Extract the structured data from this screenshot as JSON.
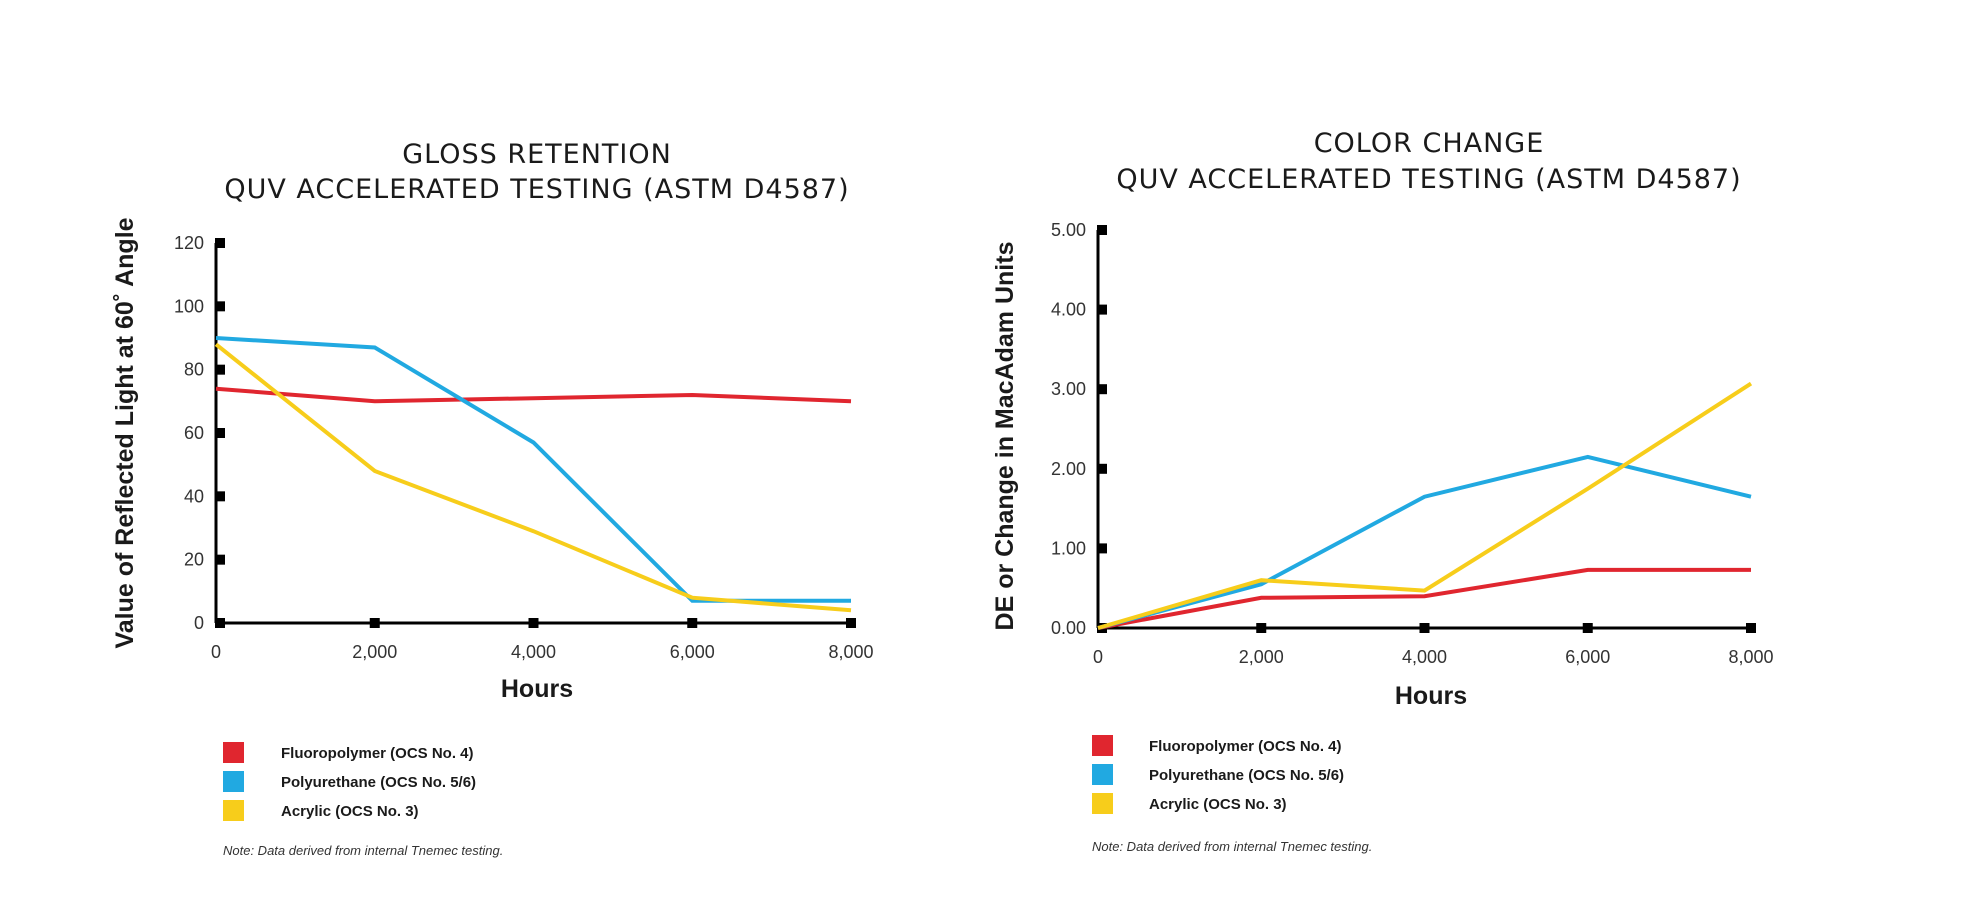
{
  "colors": {
    "fluoropolymer": "#e0262f",
    "polyurethane": "#21a9e1",
    "acrylic": "#f7cd1b",
    "axis": "#000000"
  },
  "legend": [
    {
      "label": "Fluoropolymer (OCS No. 4)",
      "color": "#e0262f"
    },
    {
      "label": "Polyurethane (OCS No. 5/6)",
      "color": "#21a9e1"
    },
    {
      "label": "Acrylic (OCS No. 3)",
      "color": "#f7cd1b"
    }
  ],
  "note": "Note: Data derived from internal Tnemec testing.",
  "chart_data": [
    {
      "type": "line",
      "title": "GLOSS RETENTION",
      "subtitle": "QUV ACCELERATED TESTING (ASTM D4587)",
      "xlabel": "Hours",
      "ylabel": "Value of Reflected Light at 60˚ Angle",
      "x": [
        0,
        2000,
        4000,
        6000,
        8000
      ],
      "x_tick_labels": [
        "0",
        "2,000",
        "4,000",
        "6,000",
        "8,000"
      ],
      "y_ticks": [
        0,
        20,
        40,
        60,
        80,
        100,
        120
      ],
      "y_tick_labels": [
        "0",
        "20",
        "40",
        "60",
        "80",
        "100",
        "120"
      ],
      "xlim": [
        0,
        8000
      ],
      "ylim": [
        0,
        120
      ],
      "grid": false,
      "legend_position": "bottom-left",
      "series": [
        {
          "name": "Fluoropolymer (OCS No. 4)",
          "color": "#e0262f",
          "values": [
            74,
            70,
            71,
            72,
            70
          ]
        },
        {
          "name": "Polyurethane (OCS No. 5/6)",
          "color": "#21a9e1",
          "values": [
            90,
            87,
            57,
            7,
            7
          ]
        },
        {
          "name": "Acrylic (OCS No. 3)",
          "color": "#f7cd1b",
          "values": [
            88,
            48,
            29,
            8,
            4
          ]
        }
      ]
    },
    {
      "type": "line",
      "title": "COLOR CHANGE",
      "subtitle": "QUV ACCELERATED TESTING (ASTM D4587)",
      "xlabel": "Hours",
      "ylabel": "DE or Change in MacAdam Units",
      "x": [
        0,
        2000,
        4000,
        6000,
        8000
      ],
      "x_tick_labels": [
        "0",
        "2,000",
        "4,000",
        "6,000",
        "8,000"
      ],
      "y_ticks": [
        0,
        1,
        2,
        3,
        4,
        5
      ],
      "y_tick_labels": [
        "0.00",
        "1.00",
        "2.00",
        "3.00",
        "4.00",
        "5.00"
      ],
      "xlim": [
        0,
        8000
      ],
      "ylim": [
        0,
        5
      ],
      "grid": false,
      "legend_position": "bottom-left",
      "series": [
        {
          "name": "Fluoropolymer (OCS No. 4)",
          "color": "#e0262f",
          "values": [
            0,
            0.38,
            0.4,
            0.73,
            0.73
          ]
        },
        {
          "name": "Polyurethane (OCS No. 5/6)",
          "color": "#21a9e1",
          "values": [
            0,
            0.55,
            1.65,
            2.15,
            1.65
          ]
        },
        {
          "name": "Acrylic (OCS No. 3)",
          "color": "#f7cd1b",
          "values": [
            0,
            0.6,
            0.47,
            1.75,
            3.07
          ]
        }
      ]
    }
  ]
}
